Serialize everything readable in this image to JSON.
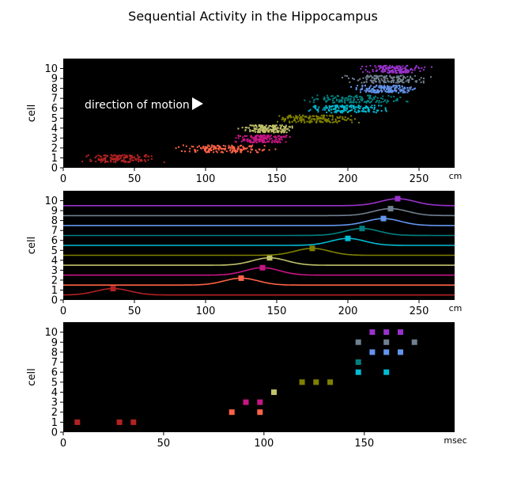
{
  "figure_title": "Sequential Activity in the Hippocampus",
  "cell_colors": [
    "#b22222",
    "#ff6347",
    "#c71585",
    "#c2c26a",
    "#808000",
    "#00bcd4",
    "#008080",
    "#6495ed",
    "#708090",
    "#9932cc"
  ],
  "chart_data": [
    {
      "type": "scatter",
      "ylabel": "cell",
      "xunit": "cm",
      "xlim": [
        0,
        275
      ],
      "ylim": [
        0,
        11
      ],
      "xticks": [
        0,
        50,
        100,
        150,
        200,
        250
      ],
      "yticks": [
        0,
        1,
        2,
        3,
        4,
        5,
        6,
        7,
        8,
        9,
        10
      ],
      "background": "#000000",
      "annotation": "direction of motion",
      "annotation_icon": "right-arrow-icon",
      "cells": [
        {
          "cell": 1,
          "x_range": [
            8,
            70
          ]
        },
        {
          "cell": 2,
          "x_range": [
            78,
            150
          ]
        },
        {
          "cell": 3,
          "x_range": [
            115,
            162
          ]
        },
        {
          "cell": 4,
          "x_range": [
            120,
            165
          ]
        },
        {
          "cell": 5,
          "x_range": [
            140,
            210
          ]
        },
        {
          "cell": 6,
          "x_range": [
            165,
            235
          ]
        },
        {
          "cell": 7,
          "x_range": [
            165,
            245
          ]
        },
        {
          "cell": 8,
          "x_range": [
            195,
            255
          ]
        },
        {
          "cell": 9,
          "x_range": [
            195,
            262
          ]
        },
        {
          "cell": 10,
          "x_range": [
            205,
            258
          ]
        }
      ]
    },
    {
      "type": "line",
      "ylabel": "cell",
      "xunit": "cm",
      "xlim": [
        0,
        275
      ],
      "ylim": [
        0,
        11
      ],
      "xticks": [
        0,
        50,
        100,
        150,
        200,
        250
      ],
      "yticks": [
        0,
        1,
        2,
        3,
        4,
        5,
        6,
        7,
        8,
        9,
        10
      ],
      "background": "#000000",
      "series": [
        {
          "cell": 1,
          "baseline": 0.5,
          "peak_x": 35,
          "peak_y": 1.15
        },
        {
          "cell": 2,
          "baseline": 1.5,
          "peak_x": 125,
          "peak_y": 2.2
        },
        {
          "cell": 3,
          "baseline": 2.5,
          "peak_x": 140,
          "peak_y": 3.25
        },
        {
          "cell": 4,
          "baseline": 3.5,
          "peak_x": 145,
          "peak_y": 4.25
        },
        {
          "cell": 5,
          "baseline": 4.5,
          "peak_x": 175,
          "peak_y": 5.2
        },
        {
          "cell": 6,
          "baseline": 5.5,
          "peak_x": 200,
          "peak_y": 6.2
        },
        {
          "cell": 7,
          "baseline": 6.5,
          "peak_x": 210,
          "peak_y": 7.2
        },
        {
          "cell": 8,
          "baseline": 7.5,
          "peak_x": 225,
          "peak_y": 8.2
        },
        {
          "cell": 9,
          "baseline": 8.5,
          "peak_x": 230,
          "peak_y": 9.2
        },
        {
          "cell": 10,
          "baseline": 9.5,
          "peak_x": 235,
          "peak_y": 10.2
        }
      ]
    },
    {
      "type": "scatter",
      "ylabel": "cell",
      "xunit": "msec",
      "xlim": [
        0,
        195
      ],
      "ylim": [
        0,
        11
      ],
      "xticks": [
        0,
        50,
        100,
        150
      ],
      "yticks": [
        0,
        1,
        2,
        3,
        4,
        5,
        6,
        7,
        8,
        9,
        10
      ],
      "background": "#000000",
      "points": [
        {
          "x": 7,
          "cell": 1
        },
        {
          "x": 28,
          "cell": 1
        },
        {
          "x": 35,
          "cell": 1
        },
        {
          "x": 84,
          "cell": 2
        },
        {
          "x": 98,
          "cell": 2
        },
        {
          "x": 91,
          "cell": 3
        },
        {
          "x": 98,
          "cell": 3
        },
        {
          "x": 105,
          "cell": 4
        },
        {
          "x": 119,
          "cell": 5
        },
        {
          "x": 126,
          "cell": 5
        },
        {
          "x": 133,
          "cell": 5
        },
        {
          "x": 147,
          "cell": 6
        },
        {
          "x": 161,
          "cell": 6
        },
        {
          "x": 147,
          "cell": 7
        },
        {
          "x": 154,
          "cell": 8
        },
        {
          "x": 161,
          "cell": 8
        },
        {
          "x": 168,
          "cell": 8
        },
        {
          "x": 147,
          "cell": 9
        },
        {
          "x": 161,
          "cell": 9
        },
        {
          "x": 175,
          "cell": 9
        },
        {
          "x": 154,
          "cell": 10
        },
        {
          "x": 161,
          "cell": 10
        },
        {
          "x": 168,
          "cell": 10
        }
      ]
    }
  ]
}
